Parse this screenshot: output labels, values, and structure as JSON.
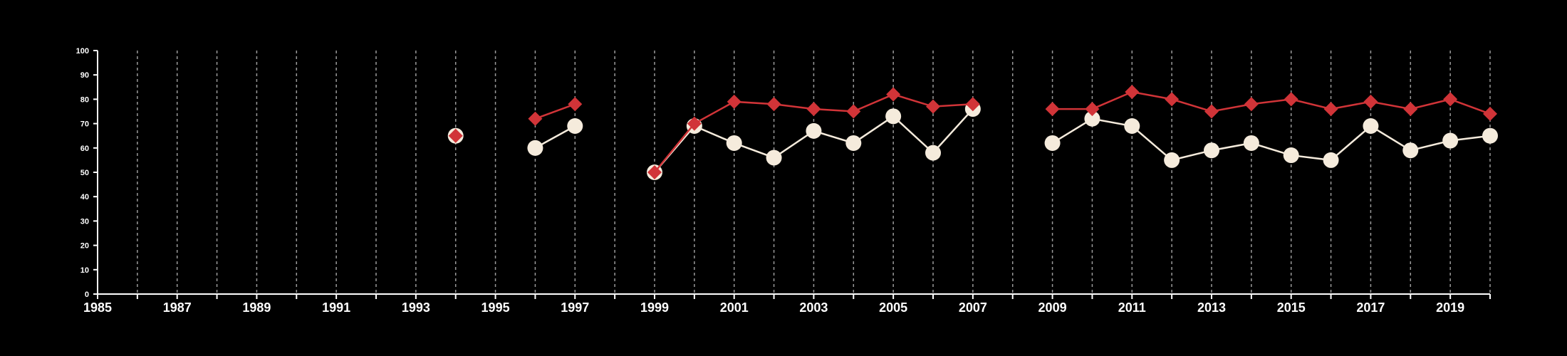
{
  "chart_data": {
    "type": "line",
    "title": "",
    "xlabel": "",
    "ylabel": "",
    "xlim": [
      1985,
      2020
    ],
    "ylim": [
      0,
      100
    ],
    "y_ticks": [
      "0",
      "10",
      "20",
      "30",
      "40",
      "50",
      "60",
      "70",
      "80",
      "90",
      "100"
    ],
    "x_tick_labels": [
      "1985",
      "1987",
      "1989",
      "1991",
      "1993",
      "1995",
      "1997",
      "1999",
      "2001",
      "2003",
      "2005",
      "2007",
      "2009",
      "2011",
      "2013",
      "2015",
      "2017",
      "2019"
    ],
    "grid": "vertical dashed lines at every year",
    "legend": "none",
    "series": [
      {
        "color": "#d13438",
        "marker": "diamond",
        "x": [
          1994,
          1996,
          1997,
          1999,
          2000,
          2001,
          2002,
          2003,
          2004,
          2005,
          2006,
          2007,
          2009,
          2010,
          2011,
          2012,
          2013,
          2014,
          2015,
          2016,
          2017,
          2018,
          2019,
          2020
        ],
        "values": [
          65,
          72,
          78,
          50,
          70,
          79,
          78,
          76,
          75,
          82,
          77,
          78,
          76,
          76,
          83,
          80,
          75,
          78,
          80,
          76,
          79,
          76,
          80,
          74
        ]
      },
      {
        "color": "#f5ebdc",
        "marker": "circle",
        "x": [
          1994,
          1996,
          1997,
          1999,
          2000,
          2001,
          2002,
          2003,
          2004,
          2005,
          2006,
          2007,
          2009,
          2010,
          2011,
          2012,
          2013,
          2014,
          2015,
          2016,
          2017,
          2018,
          2019,
          2020
        ],
        "values": [
          65,
          60,
          69,
          50,
          69,
          62,
          56,
          67,
          62,
          73,
          58,
          76,
          62,
          72,
          69,
          55,
          59,
          62,
          57,
          55,
          69,
          59,
          63,
          65
        ]
      }
    ]
  }
}
